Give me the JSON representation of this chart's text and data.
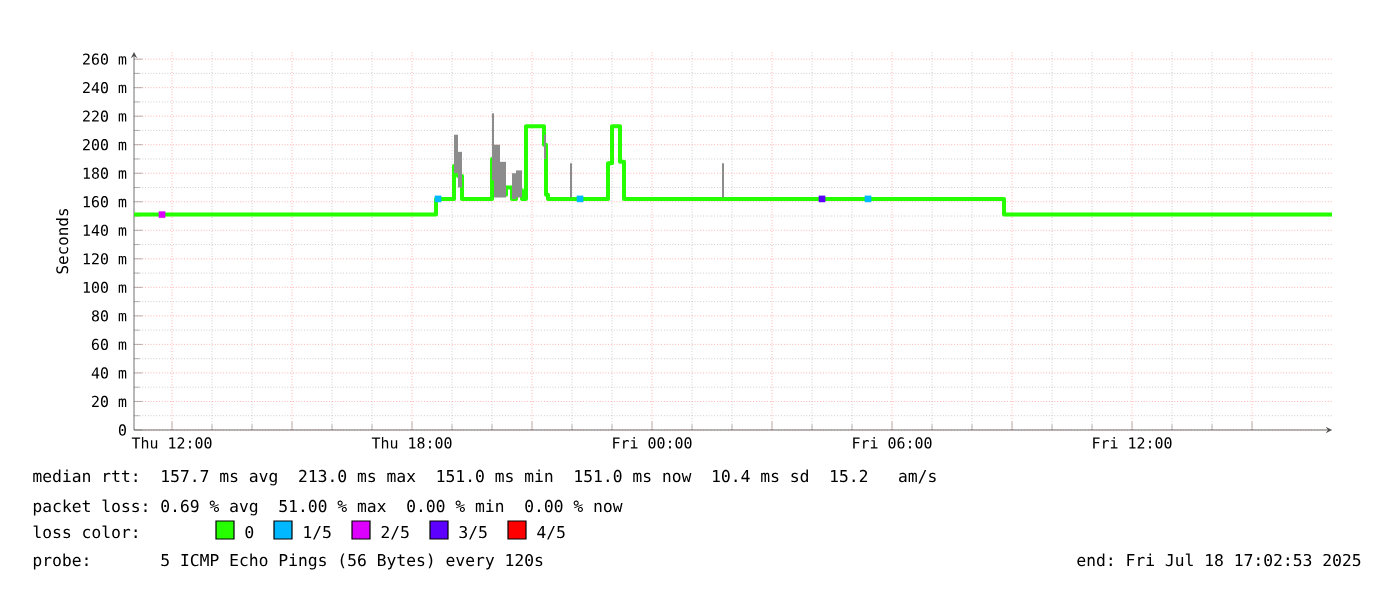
{
  "chart_data": {
    "type": "step",
    "ylabel": "Seconds",
    "xlim": [
      "2025-07-17T11:03",
      "2025-07-18T17:00"
    ],
    "ylim": [
      0,
      265
    ],
    "xticks": [
      {
        "value": "2025-07-17T12:00",
        "label": "Thu 12:00"
      },
      {
        "value": "2025-07-17T15:00",
        "label": null
      },
      {
        "value": "2025-07-17T18:00",
        "label": "Thu 18:00"
      },
      {
        "value": "2025-07-17T21:00",
        "label": null
      },
      {
        "value": "2025-07-18T00:00",
        "label": "Fri 00:00"
      },
      {
        "value": "2025-07-18T03:00",
        "label": null
      },
      {
        "value": "2025-07-18T06:00",
        "label": "Fri 06:00"
      },
      {
        "value": "2025-07-18T09:00",
        "label": null
      },
      {
        "value": "2025-07-18T12:00",
        "label": "Fri 12:00"
      },
      {
        "value": "2025-07-18T15:00",
        "label": null
      }
    ],
    "yticks": [
      0,
      {
        "value": 20,
        "label": "20 m"
      },
      {
        "value": 40,
        "label": "40 m"
      },
      {
        "value": 60,
        "label": "60 m"
      },
      {
        "value": 80,
        "label": "80 m"
      },
      {
        "value": 100,
        "label": "100 m"
      },
      {
        "value": 120,
        "label": "120 m"
      },
      {
        "value": 140,
        "label": "140 m"
      },
      {
        "value": 160,
        "label": "160 m"
      },
      {
        "value": 180,
        "label": "180 m"
      },
      {
        "value": 200,
        "label": "200 m"
      },
      {
        "value": 220,
        "label": "220 m"
      },
      {
        "value": 240,
        "label": "240 m"
      },
      {
        "value": 260,
        "label": "260 m"
      }
    ],
    "grid": true,
    "legend": "bottom",
    "legend_title": "loss color:",
    "series": [
      {
        "name": "0",
        "color": "#26ff00",
        "x": [
          "2025-07-17T11:03",
          "2025-07-17T18:33",
          "2025-07-17T18:36",
          "2025-07-17T19:00",
          "2025-07-17T19:03",
          "2025-07-17T19:09",
          "2025-07-17T19:15",
          "2025-07-17T20:00",
          "2025-07-17T20:03",
          "2025-07-17T20:12",
          "2025-07-17T20:21",
          "2025-07-17T20:30",
          "2025-07-17T20:36",
          "2025-07-17T20:45",
          "2025-07-17T20:51",
          "2025-07-17T21:18",
          "2025-07-17T21:21",
          "2025-07-17T21:24",
          "2025-07-17T21:57",
          "2025-07-17T22:00",
          "2025-07-17T22:54",
          "2025-07-17T23:00",
          "2025-07-17T23:12",
          "2025-07-17T23:18",
          "2025-07-18T01:45",
          "2025-07-18T01:48",
          "2025-07-18T08:48",
          "2025-07-18T17:00"
        ],
        "values": [
          151,
          151,
          162,
          162,
          185,
          178,
          162,
          190,
          170,
          165,
          170,
          162,
          168,
          162,
          213,
          200,
          165,
          162,
          162,
          162,
          187,
          213,
          188,
          162,
          162,
          162,
          151,
          151
        ],
        "lower": [
          null,
          null,
          null,
          null,
          180,
          170,
          null,
          175,
          163,
          163,
          null,
          162,
          163,
          null,
          null,
          190,
          null,
          null,
          163,
          null,
          null,
          null,
          null,
          null,
          163,
          null,
          null,
          null
        ],
        "upper": [
          null,
          null,
          null,
          null,
          207,
          195,
          null,
          222,
          200,
          188,
          null,
          180,
          182,
          null,
          null,
          207,
          null,
          null,
          187,
          null,
          null,
          null,
          null,
          null,
          187,
          null,
          null,
          null
        ]
      },
      {
        "name": "1/5",
        "color": "#00b8ff",
        "type": "scatter",
        "marker": "square",
        "x": [
          "2025-07-17T18:39",
          "2025-07-17T22:12",
          "2025-07-18T05:24"
        ],
        "values": [
          162,
          162,
          162
        ]
      },
      {
        "name": "2/5",
        "color": "#dd00ff",
        "type": "scatter",
        "marker": "square",
        "x": [
          "2025-07-17T11:45"
        ],
        "values": [
          151
        ]
      },
      {
        "name": "3/5",
        "color": "#5e00ff",
        "type": "scatter",
        "marker": "square",
        "x": [
          "2025-07-18T04:15"
        ],
        "values": [
          162
        ]
      },
      {
        "name": "4/5",
        "color": "#ff0000"
      }
    ],
    "annotations": [
      "median rtt:  157.7 ms avg  213.0 ms max  151.0 ms min  151.0 ms now  10.4 ms sd  15.2   am/s",
      "packet loss: 0.69 % avg  51.00 % max  0.00 % min  0.00 % now",
      "probe:       5 ICMP Echo Pings (56 Bytes) every 120s",
      "end: Fri Jul 18 17:02:53 2025"
    ]
  }
}
